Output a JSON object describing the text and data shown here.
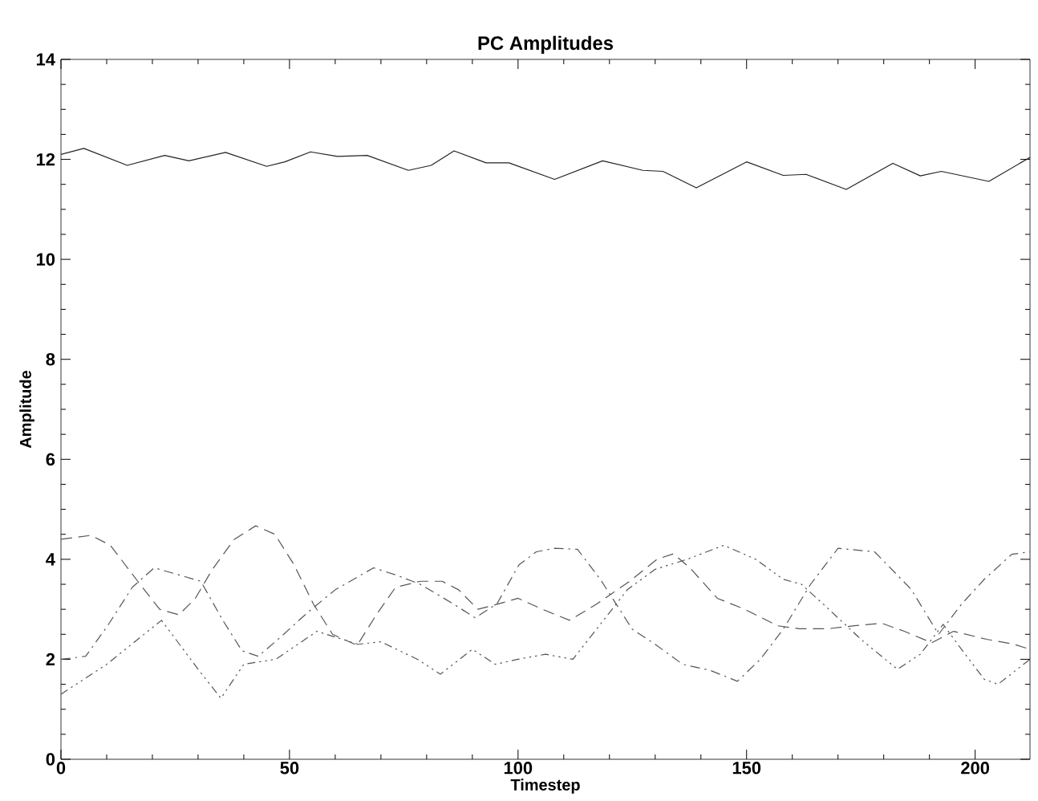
{
  "chart_data": {
    "type": "line",
    "title": "PC Amplitudes",
    "xlabel": "Timestep",
    "ylabel": "Amplitude",
    "xlim": [
      0,
      212
    ],
    "xticks": [
      0,
      50,
      100,
      150,
      200
    ],
    "ylim": [
      0,
      14
    ],
    "yticks": [
      0,
      2,
      4,
      6,
      8,
      10,
      12,
      14
    ],
    "grid": false,
    "series": [
      {
        "color": "#222222",
        "line_style": "solid",
        "x": [
          0,
          5,
          14.5,
          22.7,
          28,
          36,
          45,
          49,
          54.6,
          60.5,
          67,
          76,
          81,
          86,
          93,
          98,
          108,
          118.5,
          127.3,
          131.7,
          139,
          150,
          158,
          163,
          171.8,
          182,
          188,
          192.6,
          203,
          212
        ],
        "values": [
          12.1,
          12.22,
          11.88,
          12.08,
          11.97,
          12.14,
          11.86,
          11.95,
          12.15,
          12.06,
          12.08,
          11.78,
          11.88,
          12.17,
          11.93,
          11.93,
          11.6,
          11.97,
          11.78,
          11.76,
          11.43,
          11.95,
          11.68,
          11.7,
          11.4,
          11.92,
          11.67,
          11.76,
          11.56,
          12.04
        ]
      },
      {
        "color": "#555555",
        "line_style": "dashed",
        "x": [
          0,
          6.6,
          10.8,
          16.8,
          21.6,
          25.8,
          29.4,
          33,
          37.8,
          42.6,
          46.8,
          51,
          55.2,
          59.4,
          64.8,
          69,
          73.2,
          78.6,
          83.4,
          87,
          91.2,
          95.4,
          100,
          105.3,
          111.3,
          117.3,
          124.4,
          130.4,
          134,
          137.6,
          143.6,
          149.6,
          156.8,
          161.6,
          167.6,
          173.6,
          179.6,
          184.5,
          190.5,
          195.3,
          202.5,
          208.5,
          212
        ],
        "values": [
          4.4,
          4.48,
          4.28,
          3.56,
          3.0,
          2.89,
          3.22,
          3.78,
          4.39,
          4.67,
          4.5,
          3.89,
          3.11,
          2.5,
          2.28,
          2.89,
          3.44,
          3.56,
          3.56,
          3.39,
          3.0,
          3.1,
          3.22,
          3.0,
          2.78,
          3.11,
          3.56,
          4.0,
          4.11,
          3.83,
          3.22,
          3.0,
          2.67,
          2.61,
          2.61,
          2.67,
          2.72,
          2.56,
          2.33,
          2.56,
          2.4,
          2.3,
          2.2
        ]
      },
      {
        "color": "#555555",
        "line_style": "dashdot",
        "x": [
          0,
          5.4,
          10.2,
          15.6,
          20.4,
          24.6,
          30.6,
          35.4,
          39.6,
          43.2,
          48,
          54,
          60,
          68.4,
          73.8,
          78.6,
          85.8,
          90.6,
          95.4,
          100.2,
          104,
          108,
          113,
          118,
          125,
          130,
          136,
          142,
          148,
          153,
          158,
          164,
          170,
          178,
          186,
          192,
          197,
          202,
          208,
          212
        ],
        "values": [
          2.0,
          2.06,
          2.67,
          3.44,
          3.83,
          3.72,
          3.56,
          2.78,
          2.17,
          2.06,
          2.44,
          2.94,
          3.39,
          3.83,
          3.67,
          3.5,
          3.11,
          2.83,
          3.11,
          3.89,
          4.15,
          4.22,
          4.2,
          3.6,
          2.6,
          2.3,
          1.9,
          1.78,
          1.56,
          2.0,
          2.6,
          3.5,
          4.22,
          4.15,
          3.4,
          2.5,
          3.1,
          3.6,
          4.1,
          4.15
        ]
      },
      {
        "color": "#555555",
        "line_style": "dotted",
        "x": [
          0,
          10,
          22,
          30,
          35,
          40,
          47,
          56,
          65,
          70,
          78,
          83,
          90,
          95,
          100,
          106,
          112,
          118,
          124,
          130,
          137,
          145,
          152,
          158,
          162,
          168,
          175,
          183,
          188,
          193,
          197,
          202,
          205,
          212
        ],
        "values": [
          1.3,
          1.9,
          2.78,
          1.8,
          1.22,
          1.9,
          2.0,
          2.56,
          2.3,
          2.35,
          2.0,
          1.7,
          2.2,
          1.9,
          2.0,
          2.1,
          2.0,
          2.7,
          3.4,
          3.8,
          4.0,
          4.28,
          4.0,
          3.6,
          3.5,
          3.0,
          2.4,
          1.8,
          2.1,
          2.7,
          2.2,
          1.6,
          1.5,
          2.0
        ]
      }
    ]
  }
}
